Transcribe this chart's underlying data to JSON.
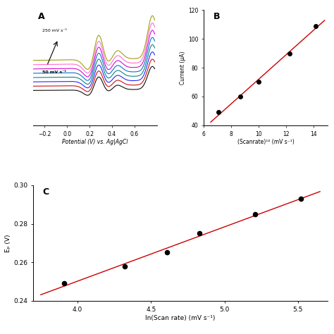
{
  "panel_A": {
    "label": "A",
    "xlabel": "Potential (V) vs. Ag|AgCl",
    "annotation_top": "250 mV s⁻¹",
    "annotation_bot": "50 mV s⁻¹",
    "colors_bottom_to_top": [
      "#000000",
      "#cc0000",
      "#1a1aff",
      "#007b7b",
      "#0066cc",
      "#cc00cc",
      "#ff66cc",
      "#999900"
    ]
  },
  "panel_B": {
    "label": "B",
    "xlabel": "(Scanrate)¹² (mV s⁻¹)",
    "ylabel": "Current (μA)",
    "x_data": [
      7.07,
      8.66,
      10.0,
      12.25,
      14.14
    ],
    "y_data": [
      49,
      60,
      70,
      90,
      109
    ],
    "xlim": [
      6,
      15
    ],
    "ylim": [
      40,
      120
    ],
    "yticks": [
      40,
      60,
      80,
      100,
      120
    ],
    "xticks": [
      6,
      8,
      10,
      12,
      14
    ],
    "fit_color": "#cc0000",
    "dot_color": "#000000"
  },
  "panel_C": {
    "label": "C",
    "xlabel": "ln(Scan rate) (mV s⁻¹)",
    "ylabel": "Eₚ (V)",
    "x_data": [
      3.91,
      4.32,
      4.61,
      4.83,
      5.21,
      5.52
    ],
    "y_data": [
      0.249,
      0.258,
      0.265,
      0.275,
      0.285,
      0.293
    ],
    "xlim": [
      3.7,
      5.7
    ],
    "ylim": [
      0.24,
      0.3
    ],
    "yticks": [
      0.24,
      0.26,
      0.28,
      0.3
    ],
    "xticks": [
      4.0,
      4.5,
      5.0,
      5.5
    ],
    "fit_color": "#cc0000",
    "dot_color": "#000000"
  }
}
